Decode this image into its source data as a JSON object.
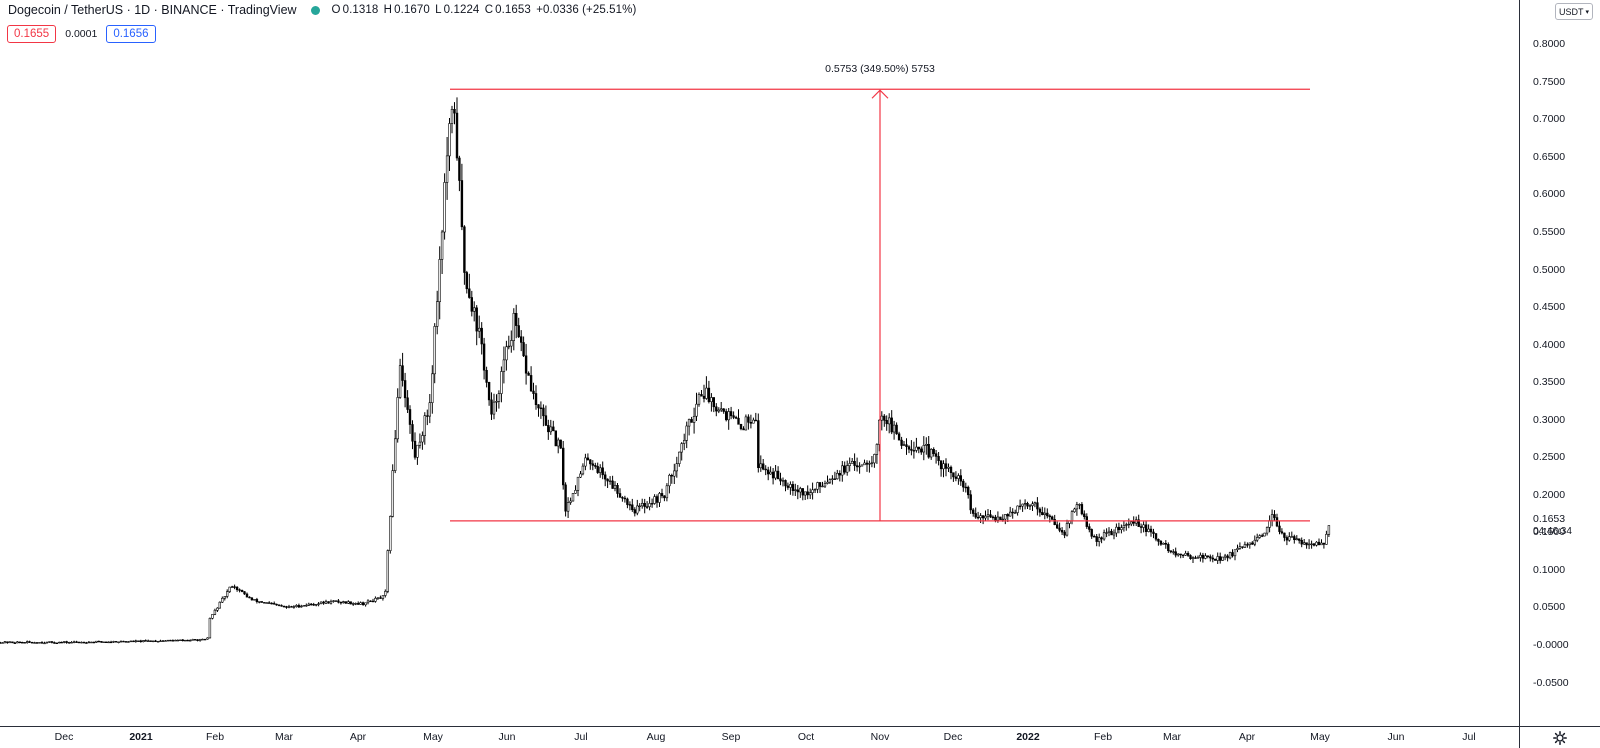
{
  "header": {
    "title": "Dogecoin / TetherUS · 1D · BINANCE · TradingView",
    "status_color": "#26a69a",
    "ohlc": {
      "open_label": "O",
      "open": "0.1318",
      "high_label": "H",
      "high": "0.1670",
      "low_label": "L",
      "low": "0.1224",
      "close_label": "C",
      "close": "0.1653",
      "change": "+0.0336 (+25.51%)"
    }
  },
  "quotes": {
    "sell": "0.1655",
    "spread": "0.0001",
    "buy": "0.1656"
  },
  "currency_button": "USDT",
  "colors": {
    "up": "#26a69a",
    "down": "#f23645",
    "line": "#f23645",
    "candles": "#000000",
    "buy": "#2962ff"
  },
  "price_axis": {
    "ticks": [
      "0.8000",
      "0.7500",
      "0.7000",
      "0.6500",
      "0.6000",
      "0.5500",
      "0.5000",
      "0.4500",
      "0.4000",
      "0.3500",
      "0.3000",
      "0.2500",
      "0.2000",
      "0.1500",
      "0.1000",
      "0.0500",
      "-0.0000",
      "-0.0500"
    ],
    "tick_values": [
      0.8,
      0.75,
      0.7,
      0.65,
      0.6,
      0.55,
      0.5,
      0.45,
      0.4,
      0.35,
      0.3,
      0.25,
      0.2,
      0.15,
      0.1,
      0.05,
      0.0,
      -0.05
    ],
    "last_price": "0.1653",
    "countdown": "04:46:34"
  },
  "time_axis": {
    "labels": [
      {
        "text": "Dec",
        "bold": false
      },
      {
        "text": "2021",
        "bold": true
      },
      {
        "text": "Feb",
        "bold": false
      },
      {
        "text": "Mar",
        "bold": false
      },
      {
        "text": "Apr",
        "bold": false
      },
      {
        "text": "May",
        "bold": false
      },
      {
        "text": "Jun",
        "bold": false
      },
      {
        "text": "Jul",
        "bold": false
      },
      {
        "text": "Aug",
        "bold": false
      },
      {
        "text": "Sep",
        "bold": false
      },
      {
        "text": "Oct",
        "bold": false
      },
      {
        "text": "Nov",
        "bold": false
      },
      {
        "text": "Dec",
        "bold": false
      },
      {
        "text": "2022",
        "bold": true
      },
      {
        "text": "Feb",
        "bold": false
      },
      {
        "text": "Mar",
        "bold": false
      },
      {
        "text": "Apr",
        "bold": false
      },
      {
        "text": "May",
        "bold": false
      },
      {
        "text": "Jun",
        "bold": false
      },
      {
        "text": "Jul",
        "bold": false
      }
    ]
  },
  "measurement": {
    "label": "0.5753 (349.50%) 5753",
    "top_price": 0.74,
    "bottom_price": 0.1653
  },
  "chart_data": {
    "type": "candlestick",
    "symbol": "DOGEUSDT",
    "interval": "1D",
    "ylim": [
      -0.075,
      0.83
    ],
    "xlabels": [
      "Dec",
      "2021",
      "Feb",
      "Mar",
      "Apr",
      "May",
      "Jun",
      "Jul",
      "Aug",
      "Sep",
      "Oct",
      "Nov",
      "Dec",
      "2022",
      "Feb",
      "Mar",
      "Apr",
      "May",
      "Jun",
      "Jul"
    ],
    "approx_close_path": [
      {
        "date": "2020-12-01",
        "close": 0.0035
      },
      {
        "date": "2021-01-01",
        "close": 0.005
      },
      {
        "date": "2021-01-28",
        "close": 0.007
      },
      {
        "date": "2021-01-29",
        "close": 0.035
      },
      {
        "date": "2021-02-07",
        "close": 0.08
      },
      {
        "date": "2021-02-15",
        "close": 0.06
      },
      {
        "date": "2021-03-01",
        "close": 0.05
      },
      {
        "date": "2021-03-20",
        "close": 0.058
      },
      {
        "date": "2021-04-01",
        "close": 0.055
      },
      {
        "date": "2021-04-10",
        "close": 0.065
      },
      {
        "date": "2021-04-16",
        "close": 0.38
      },
      {
        "date": "2021-04-22",
        "close": 0.25
      },
      {
        "date": "2021-04-28",
        "close": 0.32
      },
      {
        "date": "2021-05-05",
        "close": 0.65
      },
      {
        "date": "2021-05-08",
        "close": 0.72
      },
      {
        "date": "2021-05-12",
        "close": 0.5
      },
      {
        "date": "2021-05-19",
        "close": 0.4
      },
      {
        "date": "2021-05-23",
        "close": 0.3
      },
      {
        "date": "2021-06-01",
        "close": 0.43
      },
      {
        "date": "2021-06-10",
        "close": 0.32
      },
      {
        "date": "2021-06-20",
        "close": 0.26
      },
      {
        "date": "2021-06-22",
        "close": 0.18
      },
      {
        "date": "2021-07-01",
        "close": 0.25
      },
      {
        "date": "2021-07-20",
        "close": 0.18
      },
      {
        "date": "2021-08-01",
        "close": 0.2
      },
      {
        "date": "2021-08-16",
        "close": 0.34
      },
      {
        "date": "2021-09-01",
        "close": 0.29
      },
      {
        "date": "2021-09-07",
        "close": 0.31
      },
      {
        "date": "2021-09-08",
        "close": 0.24
      },
      {
        "date": "2021-09-28",
        "close": 0.2
      },
      {
        "date": "2021-10-10",
        "close": 0.23
      },
      {
        "date": "2021-10-25",
        "close": 0.25
      },
      {
        "date": "2021-10-28",
        "close": 0.31
      },
      {
        "date": "2021-11-05",
        "close": 0.27
      },
      {
        "date": "2021-11-15",
        "close": 0.26
      },
      {
        "date": "2021-12-01",
        "close": 0.21
      },
      {
        "date": "2021-12-04",
        "close": 0.17
      },
      {
        "date": "2021-12-15",
        "close": 0.17
      },
      {
        "date": "2021-12-28",
        "close": 0.19
      },
      {
        "date": "2022-01-10",
        "close": 0.15
      },
      {
        "date": "2022-01-15",
        "close": 0.19
      },
      {
        "date": "2022-01-22",
        "close": 0.14
      },
      {
        "date": "2022-02-08",
        "close": 0.165
      },
      {
        "date": "2022-02-24",
        "close": 0.12
      },
      {
        "date": "2022-03-15",
        "close": 0.115
      },
      {
        "date": "2022-04-01",
        "close": 0.145
      },
      {
        "date": "2022-04-04",
        "close": 0.17
      },
      {
        "date": "2022-04-10",
        "close": 0.142
      },
      {
        "date": "2022-04-25",
        "close": 0.1318
      },
      {
        "date": "2022-04-28",
        "close": 0.1653
      }
    ]
  }
}
